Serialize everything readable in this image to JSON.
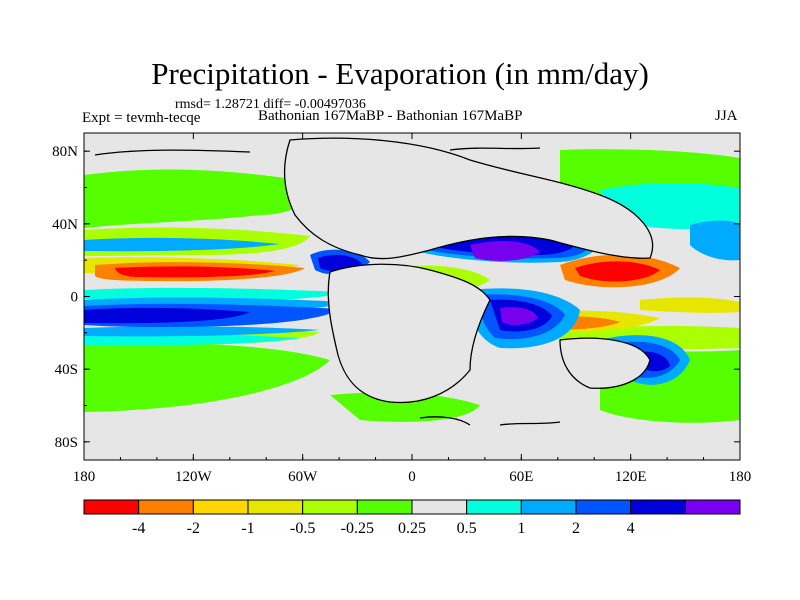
{
  "header": {
    "title": "Precipitation - Evaporation (in mm/day)",
    "stats": "rmsd= 1.28721 diff= -0.00497036",
    "expt": "Expt = tevmh-tecqe",
    "subtitle": "Bathonian 167MaBP - Bathonian 167MaBP",
    "season": "JJA"
  },
  "map": {
    "projection": "cylindrical-equidistant",
    "lon_range": [
      -180,
      180
    ],
    "lat_range": [
      -90,
      90
    ],
    "x_ticks": [
      {
        "value": -180,
        "label": "180"
      },
      {
        "value": -120,
        "label": "120W"
      },
      {
        "value": -60,
        "label": "60W"
      },
      {
        "value": 0,
        "label": "0"
      },
      {
        "value": 60,
        "label": "60E"
      },
      {
        "value": 120,
        "label": "120E"
      },
      {
        "value": 180,
        "label": "180"
      }
    ],
    "y_ticks": [
      {
        "value": 80,
        "label": "80N"
      },
      {
        "value": 40,
        "label": "40N"
      },
      {
        "value": 0,
        "label": "0"
      },
      {
        "value": -40,
        "label": "40S"
      },
      {
        "value": -80,
        "label": "80S"
      }
    ],
    "background_color": "#e6e6e6",
    "coastline_color": "#000000"
  },
  "colorbar": {
    "colors": [
      "#ff0000",
      "#ff8000",
      "#ffd700",
      "#e6e600",
      "#aaff00",
      "#55ff00",
      "#e6e6e6",
      "#00ffdd",
      "#00aaff",
      "#0055ff",
      "#0000dd",
      "#7700ee"
    ],
    "labels": [
      "-4",
      "-2",
      "-1",
      "-0.5",
      "-0.25",
      "0.25",
      "0.5",
      "1",
      "2",
      "4"
    ]
  }
}
